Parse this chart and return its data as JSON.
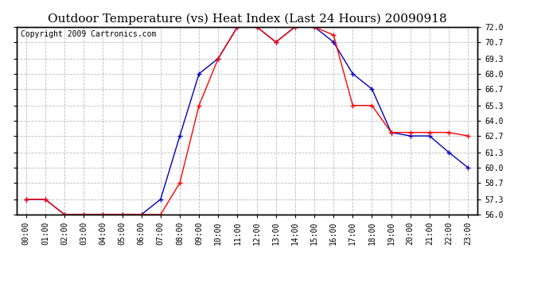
{
  "title": "Outdoor Temperature (vs) Heat Index (Last 24 Hours) 20090918",
  "copyright": "Copyright 2009 Cartronics.com",
  "x_labels": [
    "00:00",
    "01:00",
    "02:00",
    "03:00",
    "04:00",
    "05:00",
    "06:00",
    "07:00",
    "08:00",
    "09:00",
    "10:00",
    "11:00",
    "12:00",
    "13:00",
    "14:00",
    "15:00",
    "16:00",
    "17:00",
    "18:00",
    "19:00",
    "20:00",
    "21:00",
    "22:00",
    "23:00"
  ],
  "temp_red": [
    57.3,
    57.3,
    56.0,
    56.0,
    56.0,
    56.0,
    56.0,
    56.0,
    58.7,
    65.3,
    69.3,
    72.0,
    72.0,
    70.7,
    72.0,
    72.0,
    71.3,
    65.3,
    65.3,
    63.0,
    63.0,
    63.0,
    63.0,
    62.7
  ],
  "heat_blue": [
    57.3,
    57.3,
    56.0,
    56.0,
    56.0,
    56.0,
    56.0,
    57.3,
    62.7,
    68.0,
    69.3,
    72.0,
    72.0,
    70.7,
    72.0,
    72.0,
    70.7,
    68.0,
    66.7,
    63.0,
    62.7,
    62.7,
    61.3,
    60.0
  ],
  "ylim": [
    56.0,
    72.0
  ],
  "yticks": [
    56.0,
    57.3,
    58.7,
    60.0,
    61.3,
    62.7,
    64.0,
    65.3,
    66.7,
    68.0,
    69.3,
    70.7,
    72.0
  ],
  "red_color": "#ff0000",
  "blue_color": "#0000bb",
  "bg_color": "#ffffff",
  "grid_color": "#bbbbbb",
  "title_fontsize": 11,
  "copyright_fontsize": 7
}
